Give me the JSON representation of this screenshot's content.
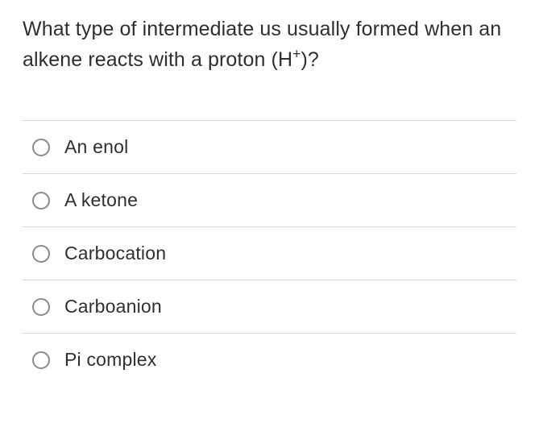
{
  "question": {
    "text_prefix": "What type of intermediate us usually formed when an alkene reacts with a proton (H",
    "sup": "+",
    "text_suffix": ")?"
  },
  "options": [
    {
      "label": "An enol"
    },
    {
      "label": "A ketone"
    },
    {
      "label": "Carbocation"
    },
    {
      "label": "Carboanion"
    },
    {
      "label": "Pi complex"
    }
  ],
  "styling": {
    "text_color": "#2f2f2f",
    "divider_color": "#d9d9d9",
    "radio_border_color": "#8a8a8a",
    "background": "#ffffff",
    "question_fontsize": 25,
    "option_fontsize": 23
  }
}
